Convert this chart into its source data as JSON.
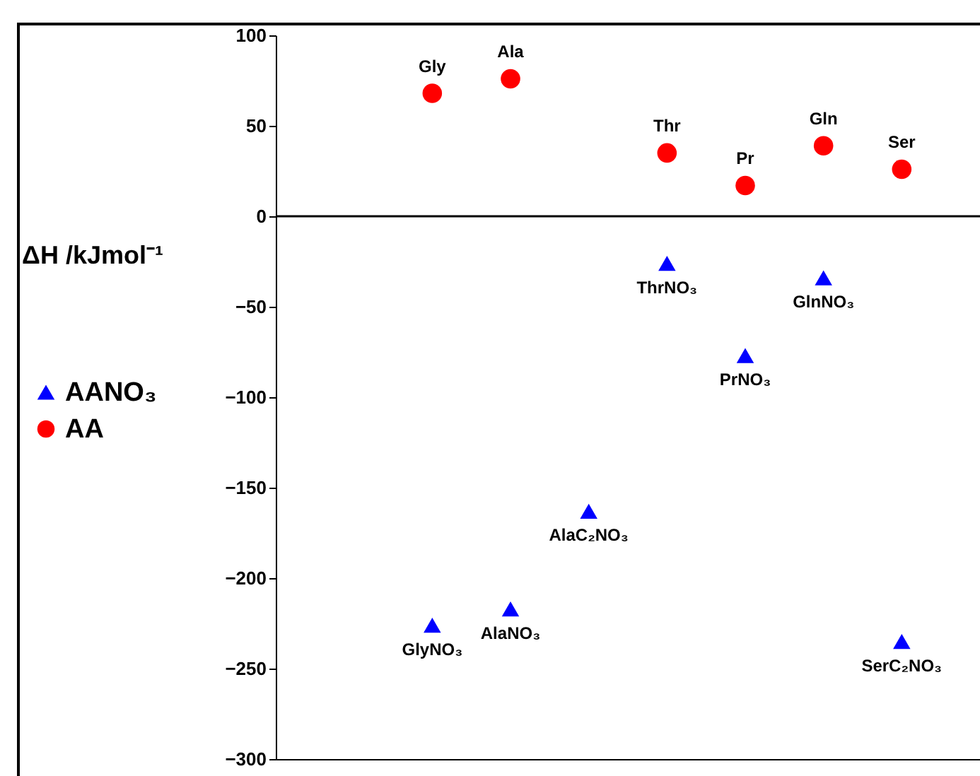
{
  "chart_data": {
    "type": "scatter",
    "ylabel": "ΔH /kJmol⁻¹",
    "categories": [
      null,
      null,
      null,
      null,
      null,
      null,
      null,
      null,
      null,
      null
    ],
    "series": [
      {
        "name": "AANO₃",
        "color": "#0000ff",
        "marker": "triangle",
        "values": [
          null,
          null,
          -226,
          -217,
          -163,
          -26,
          -77,
          -34,
          -235,
          null
        ],
        "value_labels": [
          null,
          null,
          "GlyNO₃",
          "AlaNO₃",
          "AlaC₂NO₃",
          "ThrNO₃",
          "PrNO₃",
          "GlnNO₃",
          "SerC₂NO₃",
          null
        ]
      },
      {
        "name": "AA",
        "color": "#ff0000",
        "marker": "circle",
        "values": [
          null,
          null,
          68,
          76,
          null,
          35,
          17,
          39,
          26,
          null
        ],
        "value_labels": [
          null,
          null,
          "Gly",
          "Ala",
          null,
          "Thr",
          "Pr",
          "Gln",
          "Ser",
          null
        ]
      }
    ],
    "ylim": [
      -300,
      100
    ],
    "yticks": [
      -300,
      -250,
      -200,
      -150,
      -100,
      -50,
      0,
      50,
      100
    ],
    "ref_lines": [
      {
        "axis": "y",
        "value": 0
      }
    ],
    "legend": "left",
    "tick_labels": "y"
  }
}
